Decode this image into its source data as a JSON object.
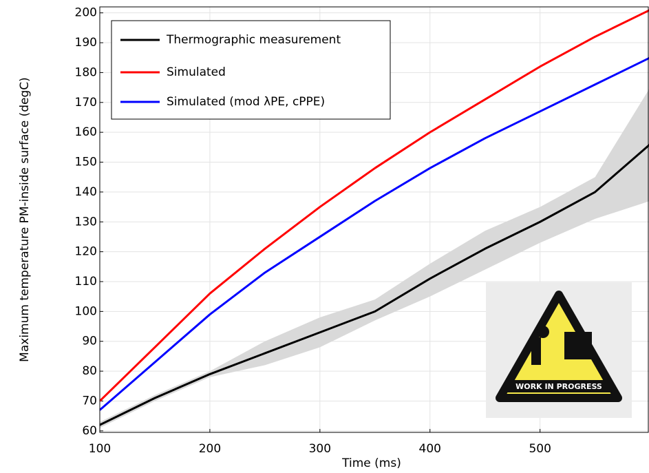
{
  "chart_data": {
    "type": "line",
    "x_label": "Time (ms)",
    "y_label": "Maximum temperature PM-inside surface (degC)",
    "x": [
      100,
      150,
      200,
      250,
      300,
      350,
      400,
      450,
      500,
      550,
      600
    ],
    "series": [
      {
        "name": "Thermographic measurement",
        "color": "#000000",
        "values": [
          62,
          71,
          79,
          86,
          93,
          100,
          111,
          121,
          130,
          140,
          156
        ]
      },
      {
        "name": "Simulated",
        "color": "#ff0000",
        "values": [
          70,
          88,
          106,
          121,
          135,
          148,
          160,
          171,
          182,
          192,
          201
        ]
      },
      {
        "name": "Simulated (mod λPE, cPPE)",
        "color": "#0000ff",
        "values": [
          67,
          83,
          99,
          113,
          125,
          137,
          148,
          158,
          167,
          176,
          185
        ]
      }
    ],
    "band": {
      "color": "#d9d9d9",
      "lower": [
        61,
        70,
        78,
        82,
        88,
        97,
        105,
        114,
        123,
        131,
        137
      ],
      "upper": [
        63,
        72,
        80,
        90,
        98,
        104,
        116,
        127,
        135,
        145,
        175
      ]
    },
    "xlim": [
      100,
      599
    ],
    "ylim": [
      59.5,
      202
    ],
    "xticks": [
      100,
      200,
      300,
      400,
      500
    ],
    "yticks": [
      60,
      70,
      80,
      90,
      100,
      110,
      120,
      130,
      140,
      150,
      160,
      170,
      180,
      190,
      200
    ],
    "grid": true,
    "sign_text": "WORK IN PROGRESS"
  }
}
